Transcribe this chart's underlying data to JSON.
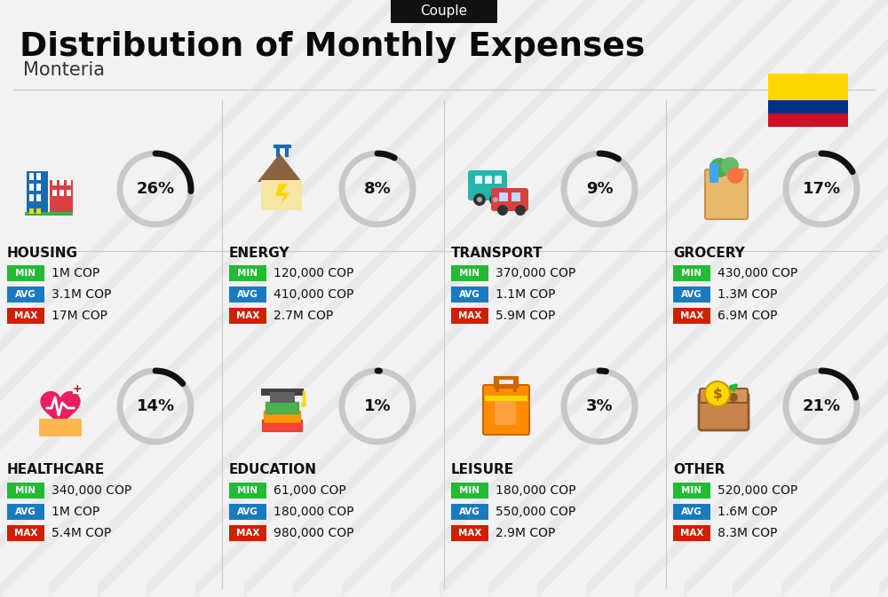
{
  "title": "Distribution of Monthly Expenses",
  "subtitle": "Monteria",
  "tag": "Couple",
  "bg_color": "#f2f2f2",
  "categories": [
    {
      "name": "HOUSING",
      "pct": 26,
      "min": "1M COP",
      "avg": "3.1M COP",
      "max": "17M COP",
      "col": 0,
      "row": 0
    },
    {
      "name": "ENERGY",
      "pct": 8,
      "min": "120,000 COP",
      "avg": "410,000 COP",
      "max": "2.7M COP",
      "col": 1,
      "row": 0
    },
    {
      "name": "TRANSPORT",
      "pct": 9,
      "min": "370,000 COP",
      "avg": "1.1M COP",
      "max": "5.9M COP",
      "col": 2,
      "row": 0
    },
    {
      "name": "GROCERY",
      "pct": 17,
      "min": "430,000 COP",
      "avg": "1.3M COP",
      "max": "6.9M COP",
      "col": 3,
      "row": 0
    },
    {
      "name": "HEALTHCARE",
      "pct": 14,
      "min": "340,000 COP",
      "avg": "1M COP",
      "max": "5.4M COP",
      "col": 0,
      "row": 1
    },
    {
      "name": "EDUCATION",
      "pct": 1,
      "min": "61,000 COP",
      "avg": "180,000 COP",
      "max": "980,000 COP",
      "col": 1,
      "row": 1
    },
    {
      "name": "LEISURE",
      "pct": 3,
      "min": "180,000 COP",
      "avg": "550,000 COP",
      "max": "2.9M COP",
      "col": 2,
      "row": 1
    },
    {
      "name": "OTHER",
      "pct": 21,
      "min": "520,000 COP",
      "avg": "1.6M COP",
      "max": "8.3M COP",
      "col": 3,
      "row": 1
    }
  ],
  "min_color": "#22bb33",
  "avg_color": "#1a7abf",
  "max_color": "#cc2200",
  "arc_dark": "#111111",
  "arc_light": "#c8c8c8",
  "colombia_yellow": "#FFD700",
  "colombia_blue": "#003087",
  "colombia_red": "#CE1126",
  "stripe_color": "#e0e0e0",
  "tag_bg": "#111111",
  "tag_fg": "#ffffff",
  "title_color": "#0a0a0a",
  "cat_label_color": "#111111",
  "val_color": "#111111"
}
